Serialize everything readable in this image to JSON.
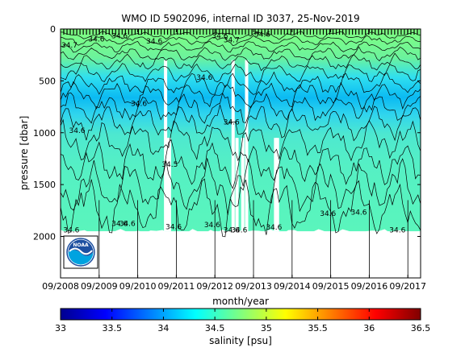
{
  "chart_data": {
    "type": "heatmap",
    "title": "WMO ID 5902096, internal ID 3037, 25-Nov-2019",
    "xlabel": "month/year",
    "ylabel": "pressure [dbar]",
    "colorbar_label": "salinity [psu]",
    "x_ticks": [
      "09/2008",
      "09/2009",
      "09/2010",
      "09/2011",
      "09/2012",
      "09/2013",
      "09/2014",
      "09/2015",
      "09/2016",
      "09/2017"
    ],
    "x_tick_values": [
      2008.67,
      2009.67,
      2010.67,
      2011.67,
      2012.67,
      2013.67,
      2014.67,
      2015.67,
      2016.67,
      2017.67
    ],
    "xlim": [
      2008.67,
      2018.0
    ],
    "y_ticks": [
      0,
      500,
      1000,
      1500,
      2000
    ],
    "ylim": [
      2400,
      0
    ],
    "y_reversed": true,
    "colorbar_ticks": [
      33,
      33.5,
      34,
      34.5,
      35,
      35.5,
      36,
      36.5
    ],
    "colorbar_range": [
      33,
      36.5
    ],
    "colormap": "jet",
    "data_max_pressure": 1950,
    "contour_labels": [
      "34.7",
      "34.6",
      "34.6",
      "34.6",
      "34.6",
      "34.7",
      "34.6",
      "34.6",
      "34.6",
      "34.6",
      "34.5",
      "34.6",
      "34.6",
      "34.6",
      "34.6",
      "34.6",
      "34.6",
      "34.6",
      "34.6",
      "34.6",
      "34.6",
      "34.6",
      "34.6"
    ],
    "profile_gaps": [
      2011.35,
      2011.4,
      2011.45,
      2013.1,
      2013.2,
      2013.35,
      2013.45,
      2014.2,
      2014.25
    ]
  },
  "logo": {
    "text": "NOAA",
    "colors": [
      "#1d4fa0",
      "#00a3e0",
      "#ffffff"
    ]
  },
  "colors": {
    "frame": "#000000",
    "background": "#ffffff"
  }
}
